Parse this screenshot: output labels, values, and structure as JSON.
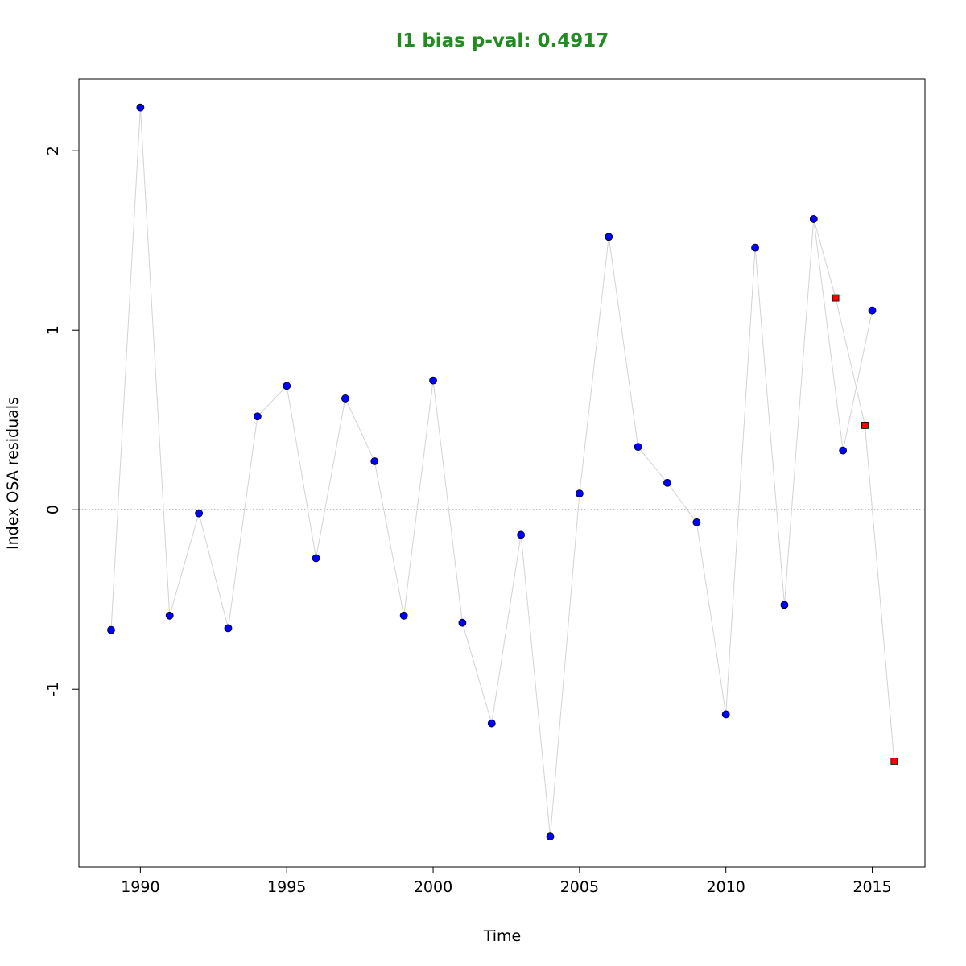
{
  "chart_data": {
    "type": "scatter",
    "title": "I1 bias p-val: 0.4917",
    "title_color": "#228B22",
    "xlabel": "Time",
    "ylabel": "Index OSA residuals",
    "xlim": [
      1987.9,
      2016.8
    ],
    "ylim": [
      -1.99,
      2.4
    ],
    "x_ticks": [
      1990,
      1995,
      2000,
      2005,
      2010,
      2015
    ],
    "y_ticks": [
      -1,
      0,
      1,
      2
    ],
    "reference_line": {
      "y": 0,
      "style": "dotted"
    },
    "line_color": "#d3d3d3",
    "series": [
      {
        "marker": "circle",
        "fill": "#0000ff",
        "x": [
          1989,
          1990,
          1991,
          1992,
          1993,
          1994,
          1995,
          1996,
          1997,
          1998,
          1999,
          2000,
          2001,
          2002,
          2003,
          2004,
          2005,
          2006,
          2007,
          2008,
          2009,
          2010,
          2011,
          2012,
          2013,
          2014,
          2015
        ],
        "y": [
          -0.67,
          2.24,
          -0.59,
          -0.02,
          -0.66,
          0.52,
          0.69,
          -0.27,
          0.62,
          0.27,
          -0.59,
          0.72,
          -0.63,
          -1.19,
          -0.14,
          -1.82,
          0.09,
          1.52,
          0.35,
          0.15,
          -0.07,
          -1.14,
          1.46,
          -0.53,
          1.62,
          0.33,
          1.11
        ]
      },
      {
        "marker": "square",
        "fill": "#ff0000",
        "x": [
          2013.75,
          2014.75,
          2015.75
        ],
        "y": [
          1.18,
          0.47,
          -1.4
        ]
      }
    ],
    "connecting_lines": [
      {
        "x1": 2013,
        "y1": 1.62,
        "x2": 2013.75,
        "y2": 1.18
      },
      {
        "x1": 2013.75,
        "y1": 1.18,
        "x2": 2014.75,
        "y2": 0.47
      },
      {
        "x1": 2014.75,
        "y1": 0.47,
        "x2": 2015.75,
        "y2": -1.4
      }
    ]
  }
}
